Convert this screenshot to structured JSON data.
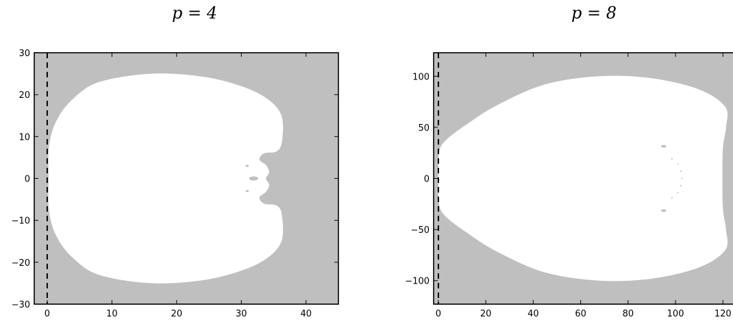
{
  "chart_data": [
    {
      "type": "area",
      "title": "p = 4",
      "xlim": [
        -2,
        45
      ],
      "ylim": [
        -30,
        30
      ],
      "xticks": [
        0,
        10,
        20,
        30,
        40
      ],
      "yticks": [
        -30,
        -20,
        -10,
        0,
        10,
        20,
        30
      ],
      "xtick_labels": [
        "0",
        "10",
        "20",
        "30",
        "40"
      ],
      "ytick_labels": [
        "−30",
        "−20",
        "−10",
        "0",
        "10",
        "20",
        "30"
      ],
      "grid": false,
      "background_color": "#bfbfbf",
      "region_color": "#ffffff",
      "dashed_vertical_line_x": 0,
      "region_boundary": [
        [
          0.2,
          0
        ],
        [
          0.3,
          8
        ],
        [
          1.5,
          14
        ],
        [
          4,
          19
        ],
        [
          8,
          23
        ],
        [
          16,
          25
        ],
        [
          24,
          24.3
        ],
        [
          30,
          22
        ],
        [
          34,
          19
        ],
        [
          36.2,
          15
        ],
        [
          36.3,
          9
        ],
        [
          35.5,
          6.5
        ],
        [
          33.5,
          6
        ],
        [
          32.8,
          4.5
        ],
        [
          33.8,
          3.2
        ],
        [
          34.3,
          1.5
        ],
        [
          33.8,
          0
        ],
        [
          34.3,
          -1.5
        ],
        [
          33.8,
          -3.2
        ],
        [
          32.8,
          -4.5
        ],
        [
          33.5,
          -6
        ],
        [
          35.5,
          -6.5
        ],
        [
          36.3,
          -9
        ],
        [
          36.2,
          -15
        ],
        [
          34,
          -19
        ],
        [
          30,
          -22
        ],
        [
          24,
          -24.3
        ],
        [
          16,
          -25
        ],
        [
          8,
          -23
        ],
        [
          4,
          -19
        ],
        [
          1.5,
          -14
        ],
        [
          0.3,
          -8
        ]
      ],
      "holes": [
        {
          "x": 31.9,
          "y": 0,
          "rx": 0.7,
          "ry": 0.5
        },
        {
          "x": 30.9,
          "y": 3,
          "rx": 0.25,
          "ry": 0.25
        },
        {
          "x": 30.9,
          "y": -3,
          "rx": 0.25,
          "ry": 0.25
        }
      ]
    },
    {
      "type": "area",
      "title": "p = 8",
      "xlim": [
        -2,
        128
      ],
      "ylim": [
        -123,
        123
      ],
      "xticks": [
        0,
        20,
        40,
        60,
        80,
        100,
        120
      ],
      "yticks": [
        -100,
        -50,
        0,
        50,
        100
      ],
      "xtick_labels": [
        "0",
        "20",
        "40",
        "60",
        "80",
        "100",
        "120"
      ],
      "ytick_labels": [
        "−100",
        "−50",
        "0",
        "50",
        "100"
      ],
      "grid": false,
      "background_color": "#bfbfbf",
      "region_color": "#ffffff",
      "dashed_vertical_line_x": 0,
      "region_boundary": [
        [
          0,
          0
        ],
        [
          0.3,
          25
        ],
        [
          3,
          37
        ],
        [
          12,
          53
        ],
        [
          25,
          72
        ],
        [
          45,
          92
        ],
        [
          68,
          100
        ],
        [
          90,
          98
        ],
        [
          110,
          87
        ],
        [
          121,
          70
        ],
        [
          121.3,
          50
        ],
        [
          120,
          30
        ],
        [
          119.8,
          0
        ],
        [
          120,
          -30
        ],
        [
          121.3,
          -50
        ],
        [
          121,
          -70
        ],
        [
          110,
          -87
        ],
        [
          90,
          -98
        ],
        [
          68,
          -100
        ],
        [
          45,
          -92
        ],
        [
          25,
          -72
        ],
        [
          12,
          -53
        ],
        [
          3,
          -37
        ],
        [
          0.3,
          -25
        ]
      ],
      "holes": [
        {
          "x": 95,
          "y": 31.5,
          "rx": 1.1,
          "ry": 1.3
        },
        {
          "x": 95,
          "y": -31.5,
          "rx": 1.1,
          "ry": 1.3
        },
        {
          "x": 98.5,
          "y": 19,
          "rx": 0.3,
          "ry": 0.5
        },
        {
          "x": 101,
          "y": 14,
          "rx": 0.3,
          "ry": 0.5
        },
        {
          "x": 102.3,
          "y": 7,
          "rx": 0.3,
          "ry": 0.5
        },
        {
          "x": 102.7,
          "y": 0,
          "rx": 0.3,
          "ry": 0.5
        },
        {
          "x": 102.3,
          "y": -7,
          "rx": 0.3,
          "ry": 0.5
        },
        {
          "x": 101,
          "y": -14,
          "rx": 0.3,
          "ry": 0.5
        },
        {
          "x": 98.5,
          "y": -19,
          "rx": 0.3,
          "ry": 0.5
        }
      ]
    }
  ]
}
